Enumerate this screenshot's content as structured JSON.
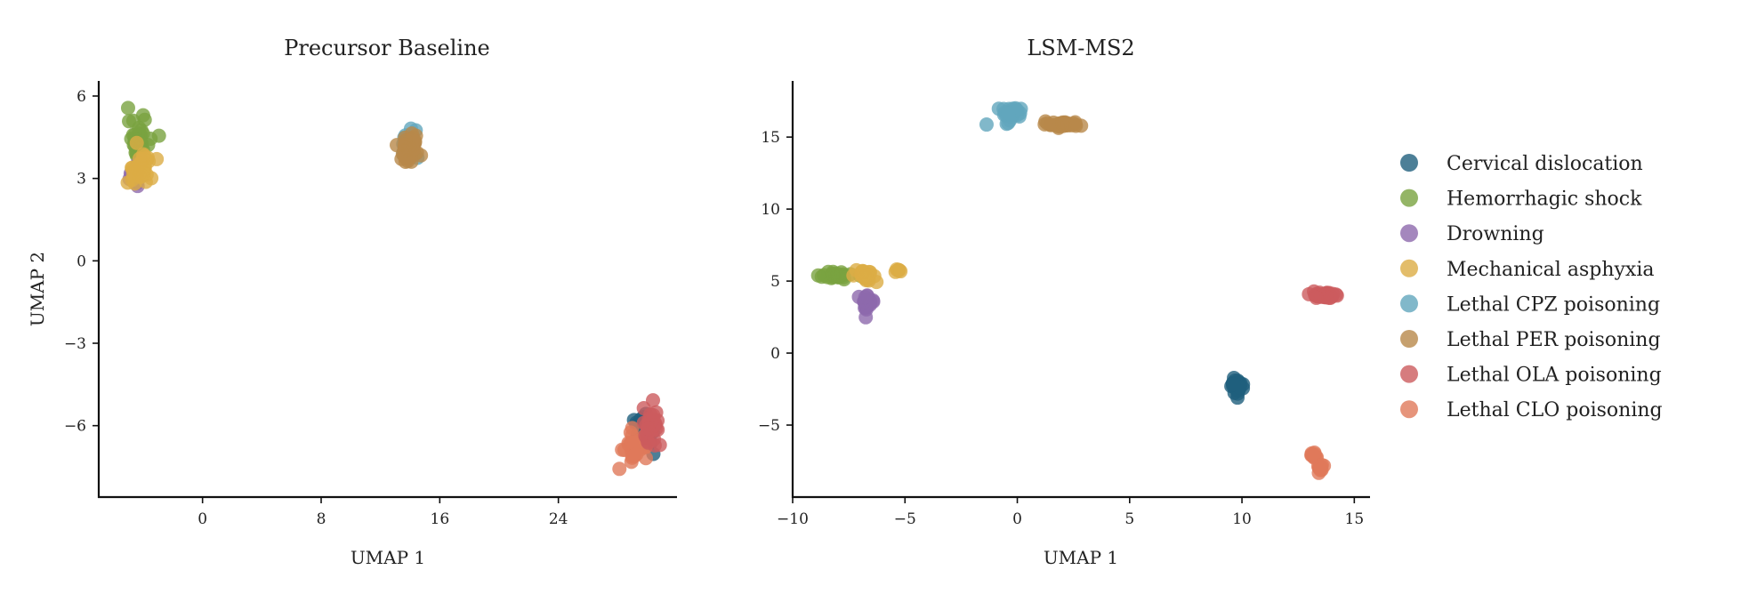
{
  "chart_data": {
    "type": "scatter",
    "legend": {
      "placement": "right",
      "entries": [
        {
          "label": "Cervical dislocation",
          "color": "#1f5f7d"
        },
        {
          "label": "Hemorrhagic shock",
          "color": "#79a340"
        },
        {
          "label": "Drowning",
          "color": "#8d69ad"
        },
        {
          "label": "Mechanical asphyxia",
          "color": "#dcad45"
        },
        {
          "label": "Lethal CPZ poisoning",
          "color": "#62a6bd"
        },
        {
          "label": "Lethal PER poisoning",
          "color": "#b8884a"
        },
        {
          "label": "Lethal OLA poisoning",
          "color": "#cc5b5e"
        },
        {
          "label": "Lethal CLO poisoning",
          "color": "#e0795a"
        }
      ]
    },
    "panels": [
      {
        "title": "Precursor Baseline",
        "xlabel": "UMAP 1",
        "ylabel": "UMAP 2",
        "xlim": [
          -7,
          32
        ],
        "ylim": [
          -8.6,
          6.55
        ],
        "xticks": [
          0,
          8,
          16,
          24
        ],
        "xtick_labels": [
          "0",
          "8",
          "16",
          "24"
        ],
        "yticks": [
          6,
          3,
          0,
          -3,
          -6
        ],
        "ytick_labels": [
          "6",
          "3",
          "0",
          "−3",
          "−6"
        ],
        "grid": false,
        "clusters": [
          {
            "series": 1,
            "center": [
              -4.3,
              4.4
            ],
            "spread": [
              0.35,
              0.4
            ],
            "n": 40
          },
          {
            "series": 2,
            "center": [
              -4.6,
              3.1
            ],
            "spread": [
              0.3,
              0.25
            ],
            "n": 14
          },
          {
            "series": 3,
            "center": [
              -4.2,
              3.3
            ],
            "spread": [
              0.45,
              0.3
            ],
            "n": 40
          },
          {
            "series": 4,
            "center": [
              13.8,
              4.2
            ],
            "spread": [
              0.3,
              0.3
            ],
            "n": 20
          },
          {
            "series": 5,
            "center": [
              14.0,
              4.1
            ],
            "spread": [
              0.4,
              0.3
            ],
            "n": 40
          },
          {
            "series": 0,
            "center": [
              29.8,
              -6.2
            ],
            "spread": [
              0.35,
              0.35
            ],
            "n": 30
          },
          {
            "series": 7,
            "center": [
              29.2,
              -6.7
            ],
            "spread": [
              0.4,
              0.25
            ],
            "n": 30
          },
          {
            "series": 6,
            "center": [
              30.3,
              -6.0
            ],
            "spread": [
              0.3,
              0.3
            ],
            "n": 30
          }
        ]
      },
      {
        "title": "LSM-MS2",
        "xlabel": "UMAP 1",
        "ylabel": "",
        "xlim": [
          -10,
          15.7
        ],
        "ylim": [
          -10,
          18.9
        ],
        "xticks": [
          -10,
          -5,
          0,
          5,
          10,
          15
        ],
        "xtick_labels": [
          "−10",
          "−5",
          "0",
          "5",
          "10",
          "15"
        ],
        "yticks": [
          15,
          10,
          5,
          0,
          -5
        ],
        "ytick_labels": [
          "15",
          "10",
          "5",
          "0",
          "−5"
        ],
        "grid": false,
        "clusters": [
          {
            "series": 4,
            "center": [
              -0.3,
              16.6
            ],
            "spread": [
              0.25,
              0.3
            ],
            "n": 30
          },
          {
            "series": 5,
            "center": [
              2.1,
              15.9
            ],
            "spread": [
              0.45,
              0.1
            ],
            "n": 30
          },
          {
            "series": 1,
            "center": [
              -8.1,
              5.4
            ],
            "spread": [
              0.35,
              0.12
            ],
            "n": 30
          },
          {
            "series": 3,
            "center": [
              -6.7,
              5.3
            ],
            "spread": [
              0.25,
              0.2
            ],
            "n": 25
          },
          {
            "series": 3,
            "center": [
              -5.3,
              5.7
            ],
            "spread": [
              0.08,
              0.08
            ],
            "n": 6
          },
          {
            "series": 2,
            "center": [
              -6.7,
              3.5
            ],
            "spread": [
              0.2,
              0.25
            ],
            "n": 25
          },
          {
            "series": 6,
            "center": [
              13.6,
              4.0
            ],
            "spread": [
              0.35,
              0.18
            ],
            "n": 30
          },
          {
            "series": 0,
            "center": [
              9.8,
              -2.3
            ],
            "spread": [
              0.12,
              0.25
            ],
            "n": 30
          },
          {
            "series": 7,
            "center": [
              13.2,
              -7.1
            ],
            "spread": [
              0.08,
              0.15
            ],
            "n": 12
          },
          {
            "series": 7,
            "center": [
              13.5,
              -8.0
            ],
            "spread": [
              0.08,
              0.15
            ],
            "n": 12
          }
        ]
      }
    ]
  }
}
